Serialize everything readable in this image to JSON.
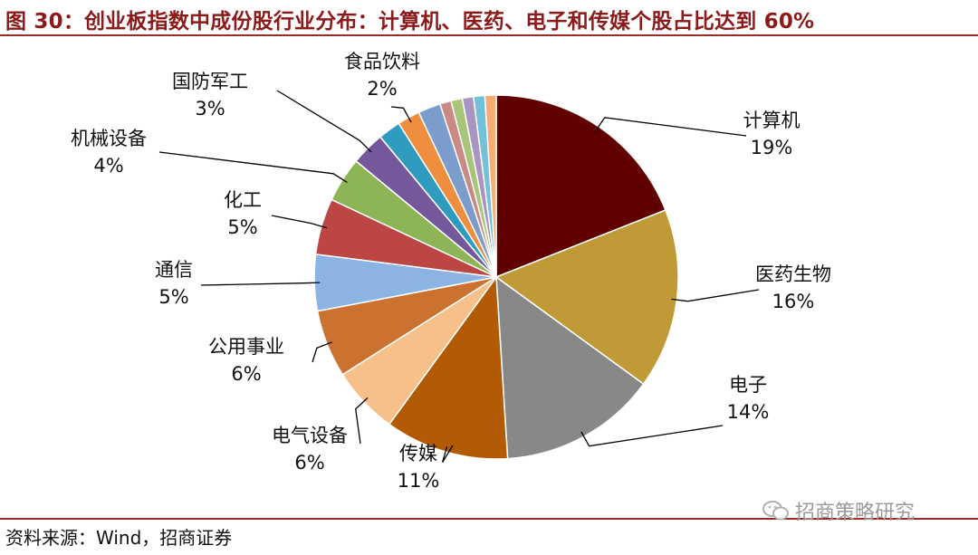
{
  "header": {
    "title": "图 30：创业板指数中成份股行业分布：计算机、医药、电子和传媒个股占比达到 60%"
  },
  "footer": {
    "source": "资料来源：Wind，招商证券"
  },
  "watermark": {
    "text": "招商策略研究"
  },
  "chart_data": {
    "type": "pie",
    "title": "",
    "slices": [
      {
        "label": "计算机",
        "value": 19,
        "display": "19%",
        "color": "#600000"
      },
      {
        "label": "医药生物",
        "value": 16,
        "display": "16%",
        "color": "#c09a36"
      },
      {
        "label": "电子",
        "value": 14,
        "display": "14%",
        "color": "#888888"
      },
      {
        "label": "传媒",
        "value": 11,
        "display": "11%",
        "color": "#b35a05"
      },
      {
        "label": "电气设备",
        "value": 6,
        "display": "6%",
        "color": "#f7c08a"
      },
      {
        "label": "公用事业",
        "value": 6,
        "display": "6%",
        "color": "#cc7230"
      },
      {
        "label": "通信",
        "value": 5,
        "display": "5%",
        "color": "#8cb4e2"
      },
      {
        "label": "化工",
        "value": 5,
        "display": "5%",
        "color": "#bc4644"
      },
      {
        "label": "机械设备",
        "value": 4,
        "display": "4%",
        "color": "#8db457"
      },
      {
        "label": "国防军工",
        "value": 3,
        "display": "3%",
        "color": "#75589c"
      },
      {
        "label": "",
        "value": 2,
        "display": "",
        "color": "#2e9bbf"
      },
      {
        "label": "食品饮料",
        "value": 2,
        "display": "2%",
        "color": "#ee8e3e"
      },
      {
        "label": "",
        "value": 2,
        "display": "",
        "color": "#7c9ccc"
      },
      {
        "label": "",
        "value": 1,
        "display": "",
        "color": "#c98a86"
      },
      {
        "label": "",
        "value": 1,
        "display": "",
        "color": "#a9c57a"
      },
      {
        "label": "",
        "value": 1,
        "display": "",
        "color": "#a896c0"
      },
      {
        "label": "",
        "value": 1,
        "display": "",
        "color": "#73c0d8"
      },
      {
        "label": "",
        "value": 1,
        "display": "",
        "color": "#f5ad75"
      }
    ]
  }
}
